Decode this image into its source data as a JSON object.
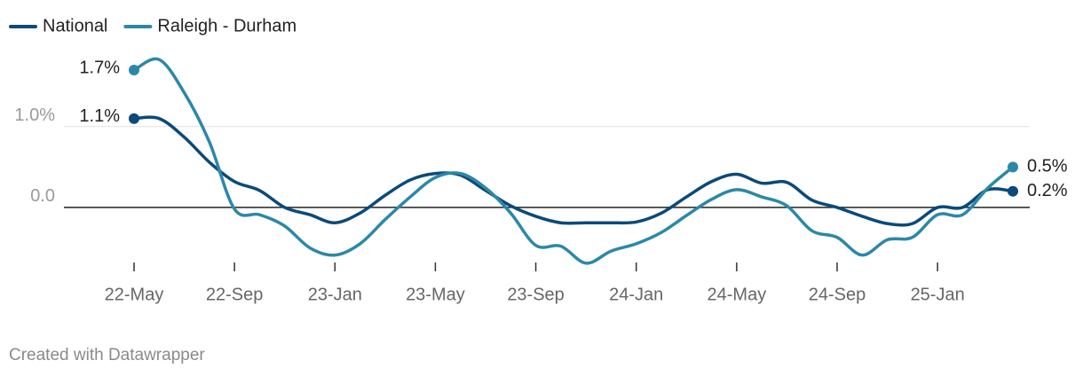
{
  "chart_data": {
    "type": "line",
    "categories": [
      "22-May",
      null,
      null,
      null,
      "22-Sep",
      null,
      null,
      null,
      "23-Jan",
      null,
      null,
      null,
      "23-May",
      null,
      null,
      null,
      "23-Sep",
      null,
      null,
      null,
      "24-Jan",
      null,
      null,
      null,
      "24-May",
      null,
      null,
      null,
      "24-Sep",
      null,
      null,
      null,
      "25-Jan",
      null,
      null,
      null
    ],
    "series": [
      {
        "name": "National",
        "color": "#0b4a7a",
        "values": [
          1.1,
          1.1,
          0.87,
          0.56,
          0.32,
          0.21,
          0.0,
          -0.09,
          -0.19,
          -0.07,
          0.15,
          0.34,
          0.42,
          0.4,
          0.21,
          0.02,
          -0.11,
          -0.19,
          -0.19,
          -0.19,
          -0.18,
          -0.07,
          0.13,
          0.32,
          0.41,
          0.3,
          0.31,
          0.09,
          0.0,
          -0.11,
          -0.2,
          -0.2,
          0.0,
          0.0,
          0.22,
          0.2
        ],
        "value_labels": [
          "1.1%",
          null,
          null,
          null,
          null,
          null,
          null,
          null,
          null,
          null,
          null,
          null,
          null,
          null,
          null,
          null,
          null,
          null,
          null,
          null,
          null,
          null,
          null,
          null,
          null,
          null,
          null,
          null,
          null,
          null,
          null,
          null,
          null,
          null,
          null,
          "0.2%"
        ]
      },
      {
        "name": "Raleigh - Durham",
        "color": "#2b88a8",
        "values": [
          1.7,
          1.83,
          1.42,
          0.81,
          -0.02,
          -0.09,
          -0.23,
          -0.5,
          -0.59,
          -0.45,
          -0.15,
          0.13,
          0.37,
          0.42,
          0.24,
          -0.07,
          -0.47,
          -0.48,
          -0.69,
          -0.54,
          -0.45,
          -0.31,
          -0.1,
          0.1,
          0.22,
          0.13,
          0.02,
          -0.29,
          -0.37,
          -0.59,
          -0.4,
          -0.37,
          -0.09,
          -0.09,
          0.24,
          0.5
        ],
        "value_labels": [
          "1.7%",
          null,
          null,
          null,
          null,
          null,
          null,
          null,
          null,
          null,
          null,
          null,
          null,
          null,
          null,
          null,
          null,
          null,
          null,
          null,
          null,
          null,
          null,
          null,
          null,
          null,
          null,
          null,
          null,
          null,
          null,
          null,
          null,
          null,
          null,
          "0.5%"
        ]
      }
    ],
    "ylim": [
      -0.72,
      1.92
    ],
    "yticks": [
      {
        "value": 0,
        "label": "0.0"
      },
      {
        "value": 1,
        "label": "1.0%"
      }
    ],
    "grid": true,
    "footer": "Created with Datawrapper"
  }
}
